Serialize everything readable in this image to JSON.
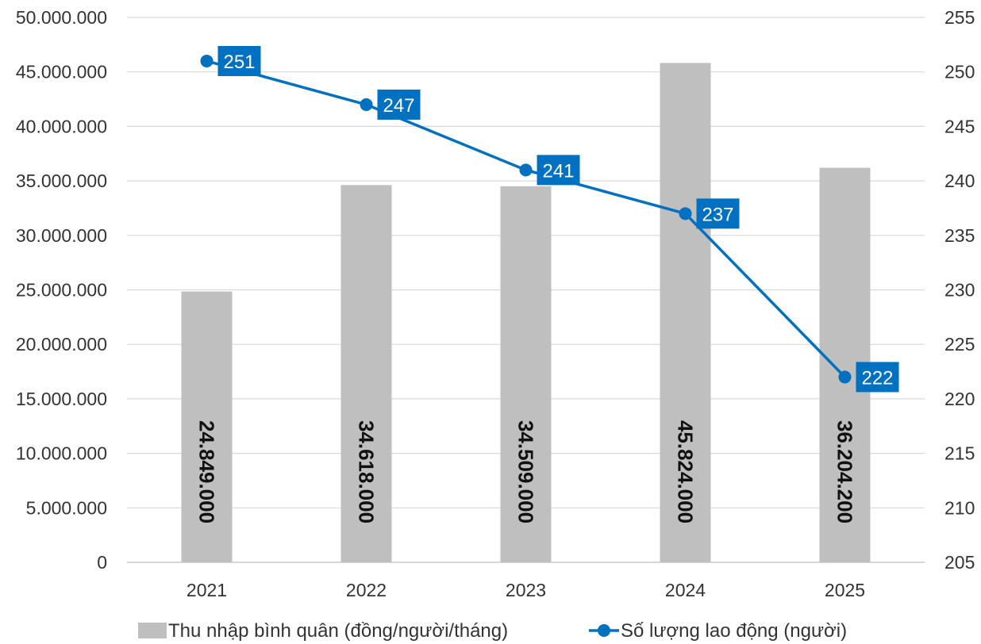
{
  "chart_data": {
    "type": "bar",
    "categories": [
      "2021",
      "2022",
      "2023",
      "2024",
      "2025"
    ],
    "series": [
      {
        "name": "Thu nhập bình quân (đồng/người/tháng)",
        "type": "bar",
        "axis": "left",
        "values": [
          24849000,
          34618000,
          34509000,
          45824000,
          36204200
        ],
        "labels": [
          "24.849.000",
          "34.618.000",
          "34.509.000",
          "45.824.000",
          "36.204.200"
        ],
        "color": "#BFBFBF"
      },
      {
        "name": "Số lượng lao động (người)",
        "type": "line",
        "axis": "right",
        "values": [
          251,
          247,
          241,
          237,
          222
        ],
        "labels": [
          "251",
          "247",
          "241",
          "237",
          "222"
        ],
        "color": "#0070C0"
      }
    ],
    "y_left": {
      "min": 0,
      "max": 50000000,
      "ticks": [
        0,
        5000000,
        10000000,
        15000000,
        20000000,
        25000000,
        30000000,
        35000000,
        40000000,
        45000000,
        50000000
      ],
      "tick_labels": [
        "0",
        "5.000.000",
        "10.000.000",
        "15.000.000",
        "20.000.000",
        "25.000.000",
        "30.000.000",
        "35.000.000",
        "40.000.000",
        "45.000.000",
        "50.000.000"
      ]
    },
    "y_right": {
      "min": 205,
      "max": 255,
      "ticks": [
        205,
        210,
        215,
        220,
        225,
        230,
        235,
        240,
        245,
        250,
        255
      ],
      "tick_labels": [
        "205",
        "210",
        "215",
        "220",
        "225",
        "230",
        "235",
        "240",
        "245",
        "250",
        "255"
      ]
    },
    "grid": true,
    "legend_position": "bottom",
    "title": "",
    "xlabel": "",
    "ylabel": ""
  }
}
